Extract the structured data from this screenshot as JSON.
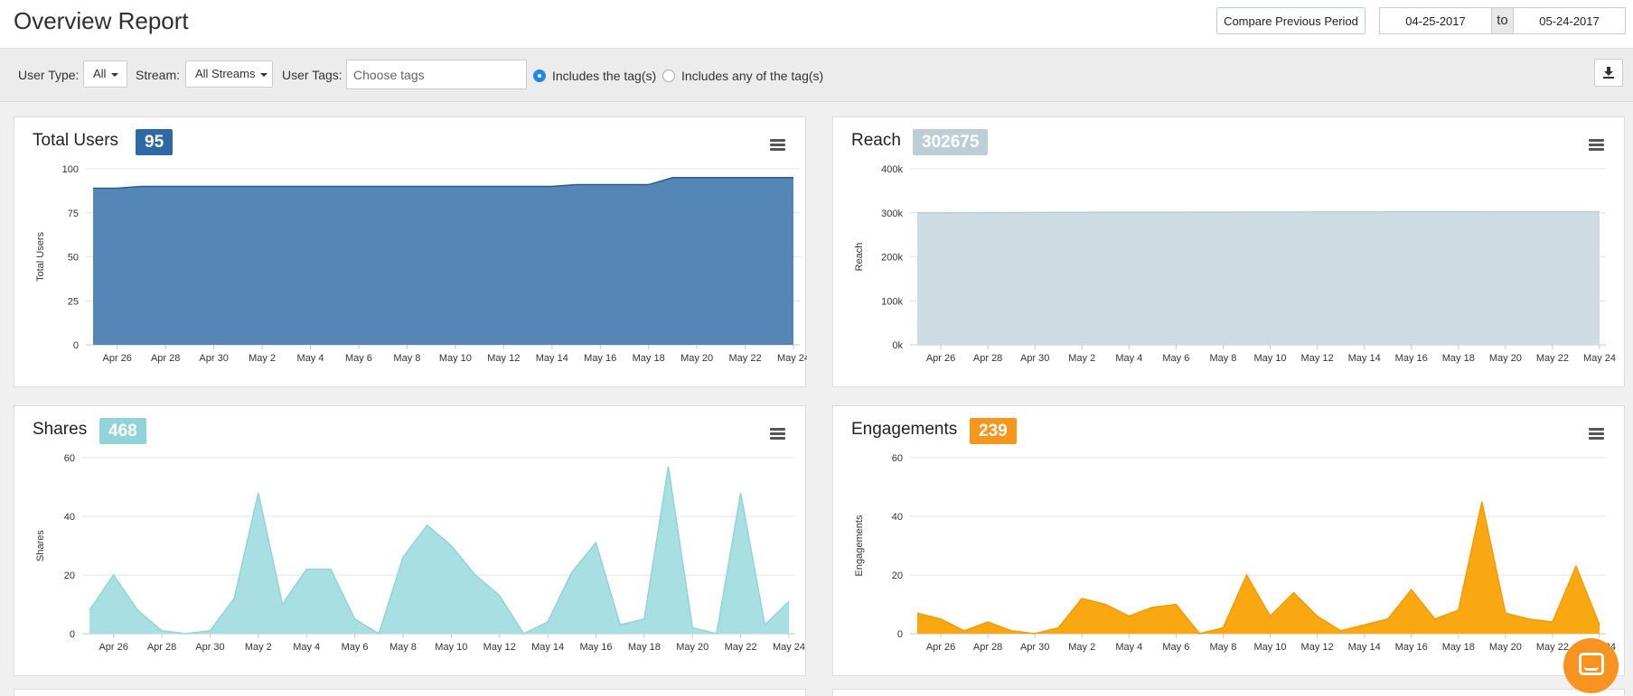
{
  "header": {
    "title": "Overview Report",
    "compare_label": "Compare Previous Period",
    "date_from": "04-25-2017",
    "date_sep": "to",
    "date_to": "05-24-2017"
  },
  "filters": {
    "user_type_label": "User Type:",
    "user_type_value": "All",
    "stream_label": "Stream:",
    "stream_value": "All Streams",
    "user_tags_label": "User Tags:",
    "tags_placeholder": "Choose tags",
    "radio_all_label": "Includes the tag(s)",
    "radio_any_label": "Includes any of the tag(s)",
    "selected_radio": "all",
    "download_icon": "download-icon"
  },
  "cards": {
    "total_users": {
      "title": "Total Users",
      "badge": "95",
      "color": "#2d6aa5"
    },
    "reach": {
      "title": "Reach",
      "badge": "302675",
      "color": "#bccfd9"
    },
    "shares": {
      "title": "Shares",
      "badge": "468",
      "color": "#90d3d9"
    },
    "engagements": {
      "title": "Engagements",
      "badge": "239",
      "color": "#f7961c"
    }
  },
  "chart_data": [
    {
      "type": "area",
      "id": "total_users",
      "ylabel": "Total Users",
      "ylim": [
        0,
        100
      ],
      "yticks": [
        "0",
        "25",
        "50",
        "75",
        "100"
      ],
      "x_tick_labels": [
        "Apr 26",
        "Apr 28",
        "Apr 30",
        "May 2",
        "May 4",
        "May 6",
        "May 8",
        "May 10",
        "May 12",
        "May 14",
        "May 16",
        "May 18",
        "May 20",
        "May 22",
        "May 24"
      ],
      "x": [
        "Apr 25",
        "Apr 26",
        "Apr 27",
        "Apr 28",
        "Apr 29",
        "Apr 30",
        "May 1",
        "May 2",
        "May 3",
        "May 4",
        "May 5",
        "May 6",
        "May 7",
        "May 8",
        "May 9",
        "May 10",
        "May 11",
        "May 12",
        "May 13",
        "May 14",
        "May 15",
        "May 16",
        "May 17",
        "May 18",
        "May 19",
        "May 20",
        "May 21",
        "May 22",
        "May 23",
        "May 24"
      ],
      "values": [
        89,
        89,
        90,
        90,
        90,
        90,
        90,
        90,
        90,
        90,
        90,
        90,
        90,
        90,
        90,
        90,
        90,
        90,
        90,
        90,
        91,
        91,
        91,
        91,
        95,
        95,
        95,
        95,
        95,
        95
      ],
      "fill": "#5587b6",
      "stroke": "#2a5b8c",
      "grid": true
    },
    {
      "type": "area",
      "id": "reach",
      "ylabel": "Reach",
      "ylim": [
        0,
        400000
      ],
      "yticks": [
        "0k",
        "100k",
        "200k",
        "300k",
        "400k"
      ],
      "x_tick_labels": [
        "Apr 26",
        "Apr 28",
        "Apr 30",
        "May 2",
        "May 4",
        "May 6",
        "May 8",
        "May 10",
        "May 12",
        "May 14",
        "May 16",
        "May 18",
        "May 20",
        "May 22",
        "May 24"
      ],
      "x": [
        "Apr 25",
        "Apr 26",
        "Apr 27",
        "Apr 28",
        "Apr 29",
        "Apr 30",
        "May 1",
        "May 2",
        "May 3",
        "May 4",
        "May 5",
        "May 6",
        "May 7",
        "May 8",
        "May 9",
        "May 10",
        "May 11",
        "May 12",
        "May 13",
        "May 14",
        "May 15",
        "May 16",
        "May 17",
        "May 18",
        "May 19",
        "May 20",
        "May 21",
        "May 22",
        "May 23",
        "May 24"
      ],
      "values": [
        300000,
        300000,
        300200,
        300400,
        300600,
        300800,
        301000,
        301000,
        301200,
        301200,
        301300,
        301400,
        301500,
        301600,
        301700,
        301800,
        301900,
        302000,
        302000,
        302100,
        302200,
        302200,
        302300,
        302400,
        302400,
        302500,
        302500,
        302600,
        302600,
        302675
      ],
      "fill": "#cddce3",
      "stroke": "#b9ccd5",
      "grid": true
    },
    {
      "type": "area",
      "id": "shares",
      "ylabel": "Shares",
      "ylim": [
        0,
        60
      ],
      "yticks": [
        "0",
        "20",
        "40",
        "60"
      ],
      "x_tick_labels": [
        "Apr 26",
        "Apr 28",
        "Apr 30",
        "May 2",
        "May 4",
        "May 6",
        "May 8",
        "May 10",
        "May 12",
        "May 14",
        "May 16",
        "May 18",
        "May 20",
        "May 22",
        "May 24"
      ],
      "x": [
        "Apr 25",
        "Apr 26",
        "Apr 27",
        "Apr 28",
        "Apr 29",
        "Apr 30",
        "May 1",
        "May 2",
        "May 3",
        "May 4",
        "May 5",
        "May 6",
        "May 7",
        "May 8",
        "May 9",
        "May 10",
        "May 11",
        "May 12",
        "May 13",
        "May 14",
        "May 15",
        "May 16",
        "May 17",
        "May 18",
        "May 19",
        "May 20",
        "May 21",
        "May 22",
        "May 23",
        "May 24"
      ],
      "values": [
        8,
        20,
        8,
        1,
        0,
        1,
        12,
        48,
        10,
        22,
        22,
        5,
        0,
        26,
        37,
        30,
        20,
        13,
        0,
        4,
        21,
        31,
        3,
        5,
        57,
        2,
        0,
        48,
        3,
        11
      ],
      "fill": "#a8dfe3",
      "stroke": "#8fd4da",
      "grid": true
    },
    {
      "type": "area",
      "id": "engagements",
      "ylabel": "Engagements",
      "ylim": [
        0,
        60
      ],
      "yticks": [
        "0",
        "20",
        "40",
        "60"
      ],
      "x_tick_labels": [
        "Apr 26",
        "Apr 28",
        "Apr 30",
        "May 2",
        "May 4",
        "May 6",
        "May 8",
        "May 10",
        "May 12",
        "May 14",
        "May 16",
        "May 18",
        "May 20",
        "May 22",
        "May 24"
      ],
      "x": [
        "Apr 25",
        "Apr 26",
        "Apr 27",
        "Apr 28",
        "Apr 29",
        "Apr 30",
        "May 1",
        "May 2",
        "May 3",
        "May 4",
        "May 5",
        "May 6",
        "May 7",
        "May 8",
        "May 9",
        "May 10",
        "May 11",
        "May 12",
        "May 13",
        "May 14",
        "May 15",
        "May 16",
        "May 17",
        "May 18",
        "May 19",
        "May 20",
        "May 21",
        "May 22",
        "May 23",
        "May 24"
      ],
      "values": [
        7,
        5,
        1,
        4,
        1,
        0,
        2,
        12,
        10,
        6,
        9,
        10,
        0,
        2,
        20,
        6,
        14,
        6,
        1,
        3,
        5,
        15,
        5,
        8,
        45,
        7,
        5,
        4,
        23,
        3
      ],
      "fill": "#f9a812",
      "stroke": "#f39a06",
      "grid": true
    }
  ]
}
